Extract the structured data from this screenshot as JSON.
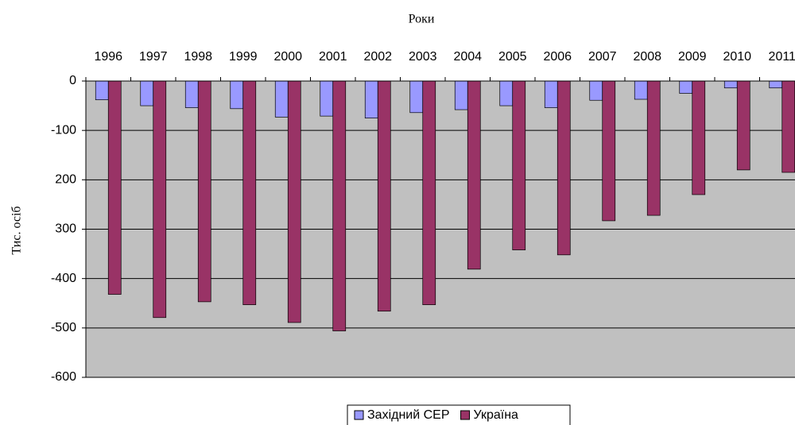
{
  "chart_data": {
    "type": "bar",
    "title": "Роки",
    "y_label": "Тис. осіб",
    "categories": [
      "1996",
      "1997",
      "1998",
      "1999",
      "2000",
      "2001",
      "2002",
      "2003",
      "2004",
      "2005",
      "2006",
      "2007",
      "2008",
      "2009",
      "2010",
      "2011"
    ],
    "series": [
      {
        "name": "Західний СЕР",
        "color": "#9999ff",
        "values": [
          -38,
          -50,
          -54,
          -56,
          -73,
          -71,
          -75,
          -64,
          -58,
          -50,
          -54,
          -39,
          -37,
          -25,
          -14,
          -14
        ]
      },
      {
        "name": "Україна",
        "color": "#993366",
        "values": [
          -432,
          -479,
          -447,
          -453,
          -489,
          -506,
          -466,
          -453,
          -381,
          -342,
          -352,
          -283,
          -272,
          -230,
          -180,
          -185
        ]
      }
    ],
    "ylim": [
      -600,
      0
    ],
    "yticks": [
      0,
      -100,
      {
        "value": -200,
        "label": "200"
      },
      {
        "value": -300,
        "label": "300"
      },
      -400,
      -500,
      -600
    ],
    "grid": true,
    "background": "#c0c0c0"
  }
}
